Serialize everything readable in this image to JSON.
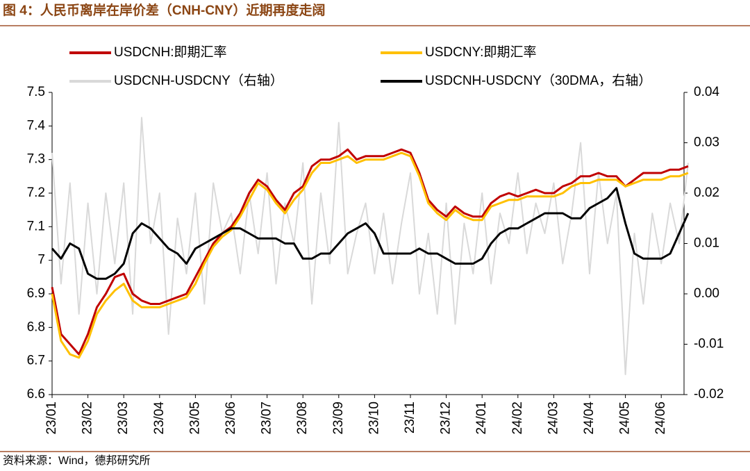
{
  "chart_data": {
    "type": "line",
    "title": "图 4：人民币离岸在岸价差（CNH-CNY）近期再度走阔",
    "source": "资料来源：Wind，德邦研究所",
    "categories": [
      "23/01",
      null,
      null,
      null,
      "23/02",
      null,
      null,
      null,
      "23/03",
      null,
      null,
      null,
      "23/04",
      null,
      null,
      null,
      "23/05",
      null,
      null,
      null,
      "23/06",
      null,
      null,
      null,
      "23/07",
      null,
      null,
      null,
      "23/08",
      null,
      null,
      null,
      "23/09",
      null,
      null,
      null,
      "23/10",
      null,
      null,
      null,
      "23/11",
      null,
      null,
      null,
      "23/12",
      null,
      null,
      null,
      "24/01",
      null,
      null,
      null,
      "24/02",
      null,
      null,
      null,
      "24/03",
      null,
      null,
      null,
      "24/04",
      null,
      null,
      null,
      "24/05",
      null,
      null,
      null,
      "24/06",
      null,
      null,
      null
    ],
    "ylim": [
      6.6,
      7.5
    ],
    "yticks": [
      7.5,
      7.4,
      7.3,
      7.2,
      7.1,
      7,
      6.9,
      6.8,
      6.7,
      6.6
    ],
    "y2lim": [
      -0.02,
      0.04
    ],
    "y2ticks": [
      0.04,
      0.03,
      0.02,
      0.01,
      {
        "value": 0,
        "label": "0.00"
      },
      -0.01,
      -0.02
    ],
    "series": [
      {
        "name": "USDCNH:即期汇率",
        "color": "#c00000",
        "axis": "y",
        "values": [
          6.92,
          6.78,
          6.75,
          6.72,
          6.78,
          6.86,
          6.9,
          6.95,
          6.96,
          6.9,
          6.88,
          6.87,
          6.87,
          6.88,
          6.89,
          6.9,
          6.95,
          7.0,
          7.05,
          7.08,
          7.1,
          7.14,
          7.2,
          7.24,
          7.22,
          7.18,
          7.15,
          7.2,
          7.22,
          7.28,
          7.3,
          7.3,
          7.31,
          7.33,
          7.3,
          7.31,
          7.31,
          7.31,
          7.32,
          7.33,
          7.32,
          7.26,
          7.18,
          7.15,
          7.13,
          7.16,
          7.14,
          7.13,
          7.13,
          7.17,
          7.19,
          7.2,
          7.19,
          7.2,
          7.21,
          7.2,
          7.2,
          7.22,
          7.23,
          7.25,
          7.25,
          7.26,
          7.25,
          7.25,
          7.22,
          7.24,
          7.26,
          7.26,
          7.26,
          7.27,
          7.27,
          7.28
        ]
      },
      {
        "name": "USDCNY:即期汇率",
        "color": "#ffc000",
        "axis": "y",
        "values": [
          6.9,
          6.76,
          6.72,
          6.71,
          6.76,
          6.84,
          6.88,
          6.91,
          6.93,
          6.88,
          6.86,
          6.86,
          6.86,
          6.87,
          6.88,
          6.89,
          6.93,
          6.99,
          7.04,
          7.07,
          7.09,
          7.13,
          7.18,
          7.23,
          7.21,
          7.17,
          7.14,
          7.18,
          7.21,
          7.26,
          7.29,
          7.29,
          7.3,
          7.31,
          7.29,
          7.3,
          7.3,
          7.3,
          7.31,
          7.32,
          7.31,
          7.25,
          7.17,
          7.14,
          7.12,
          7.15,
          7.13,
          7.12,
          7.12,
          7.16,
          7.17,
          7.18,
          7.18,
          7.19,
          7.19,
          7.19,
          7.19,
          7.2,
          7.22,
          7.23,
          7.23,
          7.24,
          7.24,
          7.24,
          7.22,
          7.23,
          7.24,
          7.24,
          7.24,
          7.25,
          7.25,
          7.26
        ]
      },
      {
        "name": "USDCNH-USDCNY（右轴）",
        "color": "#d9d9d9",
        "axis": "y2",
        "values": [
          0.028,
          0.002,
          0.022,
          -0.004,
          0.018,
          0.0,
          0.02,
          0.006,
          0.022,
          -0.004,
          0.035,
          0.01,
          0.02,
          -0.008,
          0.015,
          0.004,
          0.02,
          -0.002,
          0.022,
          0.012,
          0.016,
          0.004,
          0.02,
          0.008,
          0.024,
          0.002,
          0.018,
          0.01,
          0.026,
          -0.002,
          0.02,
          0.006,
          0.034,
          0.004,
          0.012,
          0.018,
          0.004,
          0.016,
          0.002,
          0.014,
          0.024,
          0.0,
          0.012,
          -0.004,
          0.018,
          -0.006,
          0.014,
          0.004,
          0.02,
          0.002,
          0.016,
          0.01,
          0.024,
          0.008,
          0.018,
          0.012,
          0.022,
          0.006,
          0.016,
          0.03,
          0.004,
          0.024,
          0.01,
          0.02,
          -0.016,
          0.012,
          -0.002,
          0.016,
          0.006,
          0.018,
          0.01,
          0.026
        ]
      },
      {
        "name": "USDCNH-USDCNY（30DMA，右轴）",
        "color": "#000000",
        "axis": "y2",
        "values": [
          0.009,
          0.007,
          0.01,
          0.009,
          0.004,
          0.003,
          0.003,
          0.004,
          0.006,
          0.012,
          0.014,
          0.013,
          0.011,
          0.009,
          0.008,
          0.006,
          0.009,
          0.01,
          0.011,
          0.012,
          0.013,
          0.013,
          0.012,
          0.011,
          0.011,
          0.011,
          0.01,
          0.01,
          0.007,
          0.007,
          0.008,
          0.008,
          0.01,
          0.012,
          0.013,
          0.014,
          0.012,
          0.008,
          0.008,
          0.008,
          0.008,
          0.009,
          0.008,
          0.008,
          0.007,
          0.006,
          0.006,
          0.006,
          0.007,
          0.01,
          0.012,
          0.013,
          0.013,
          0.014,
          0.015,
          0.016,
          0.016,
          0.016,
          0.015,
          0.015,
          0.017,
          0.018,
          0.019,
          0.021,
          0.014,
          0.008,
          0.007,
          0.007,
          0.007,
          0.008,
          0.012,
          0.016
        ]
      }
    ]
  }
}
